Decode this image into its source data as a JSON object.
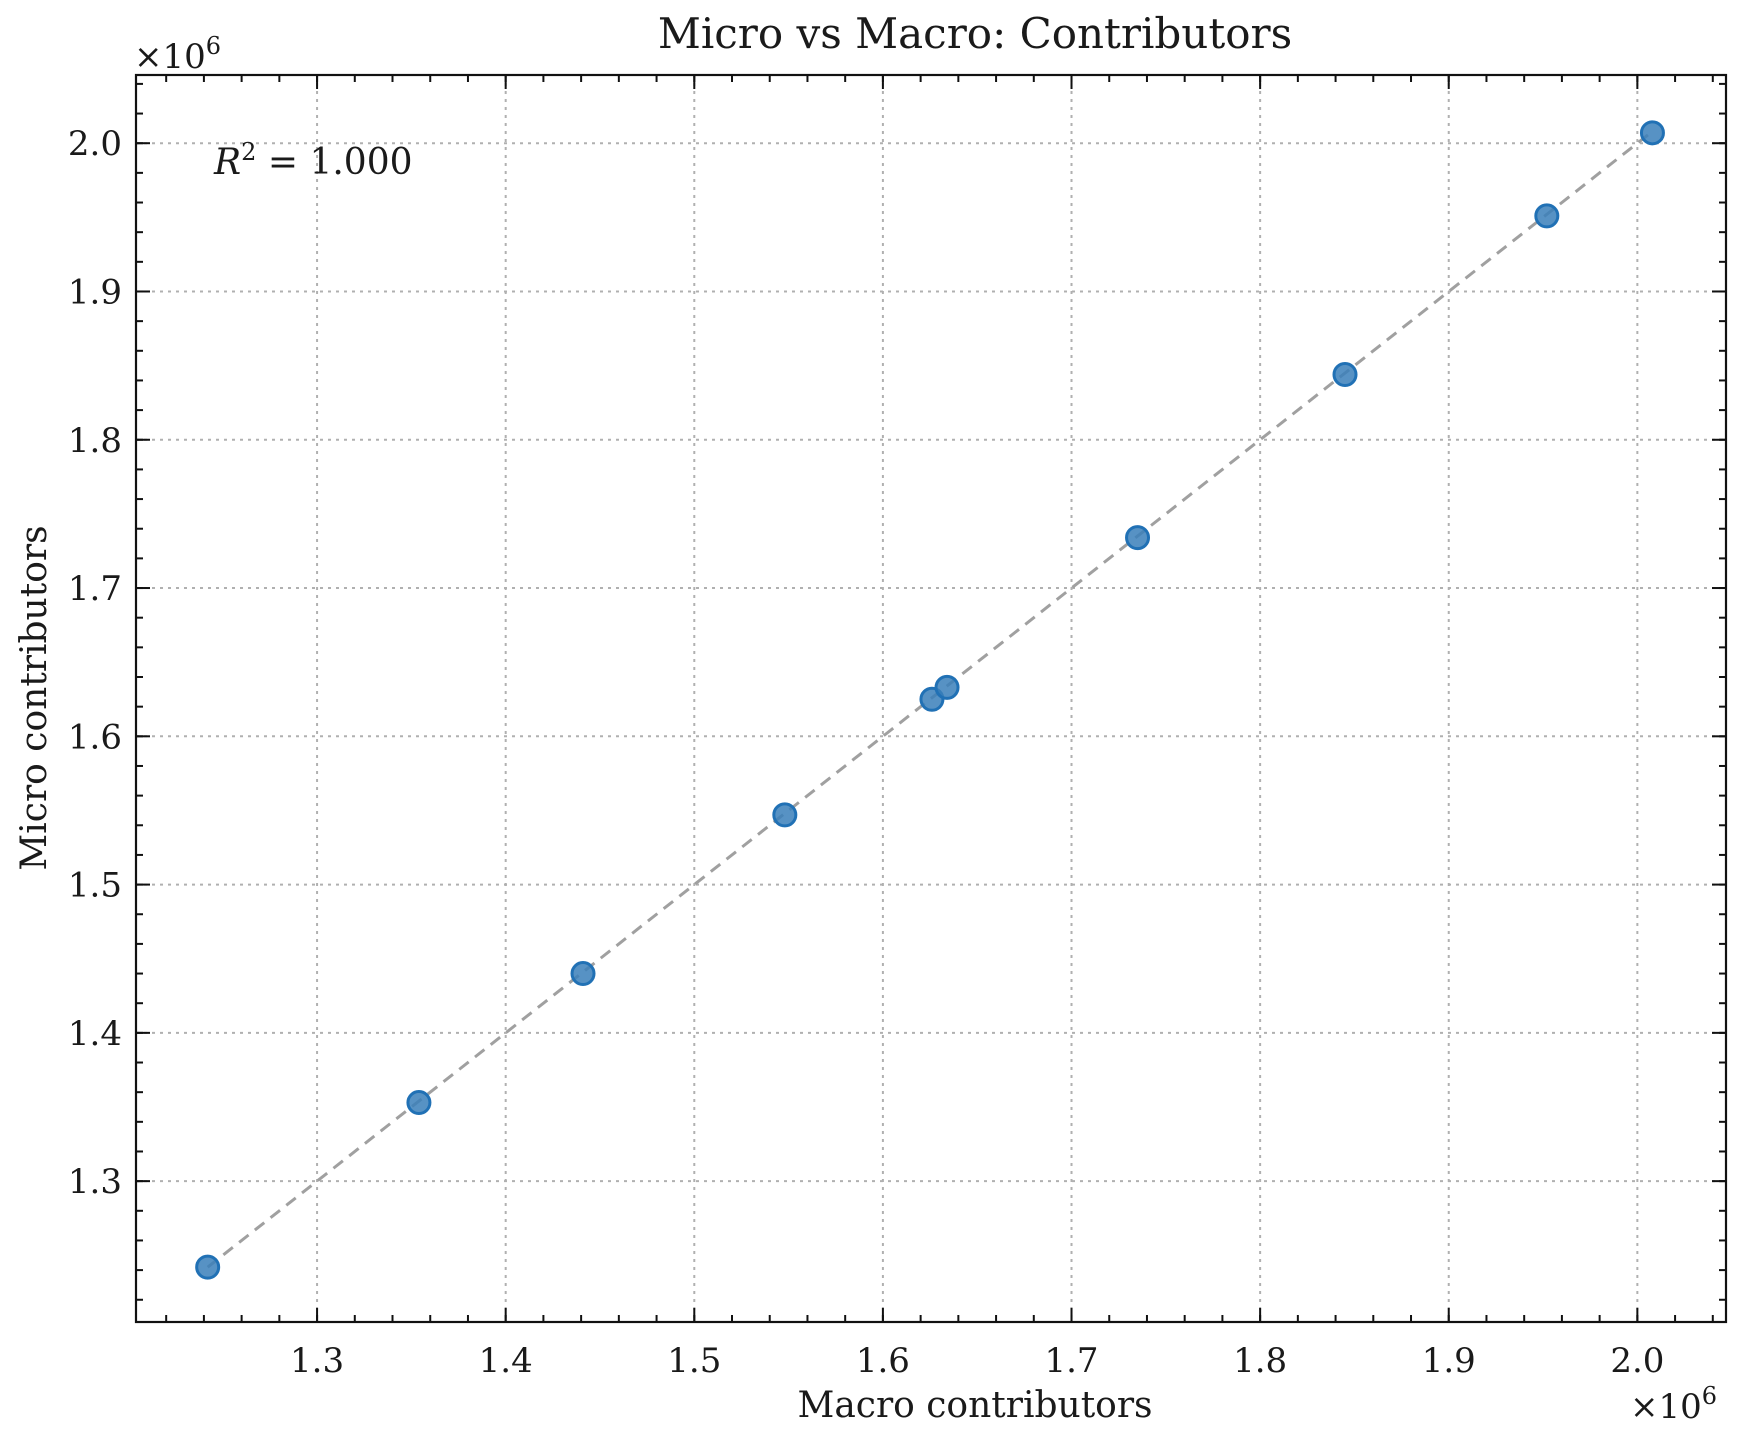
{
  "chart_data": {
    "type": "scatter",
    "title": "Micro vs Macro: Contributors",
    "xlabel": "Macro contributors",
    "ylabel": "Micro contributors",
    "x_multiplier": "×10",
    "x_multiplier_exp": "6",
    "y_multiplier": "×10",
    "y_multiplier_exp": "6",
    "annotation": {
      "r": "R",
      "sup": "2",
      "rest": " = 1.000"
    },
    "xlim": [
      1.204,
      2.047
    ],
    "ylim": [
      1.205,
      2.046
    ],
    "xticks": [
      1.3,
      1.4,
      1.5,
      1.6,
      1.7,
      1.8,
      1.9,
      2.0
    ],
    "xtick_labels": [
      "1.3",
      "1.4",
      "1.5",
      "1.6",
      "1.7",
      "1.8",
      "1.9",
      "2.0"
    ],
    "yticks": [
      1.3,
      1.4,
      1.5,
      1.6,
      1.7,
      1.8,
      1.9,
      2.0
    ],
    "ytick_labels": [
      "1.3",
      "1.4",
      "1.5",
      "1.6",
      "1.7",
      "1.8",
      "1.9",
      "2.0"
    ],
    "minor_step": 0.02,
    "grid": true,
    "points": [
      {
        "x": 1.242,
        "y": 1.242
      },
      {
        "x": 1.354,
        "y": 1.353
      },
      {
        "x": 1.441,
        "y": 1.44
      },
      {
        "x": 1.548,
        "y": 1.547
      },
      {
        "x": 1.626,
        "y": 1.625
      },
      {
        "x": 1.634,
        "y": 1.633
      },
      {
        "x": 1.735,
        "y": 1.734
      },
      {
        "x": 1.845,
        "y": 1.844
      },
      {
        "x": 1.952,
        "y": 1.951
      },
      {
        "x": 2.008,
        "y": 2.007
      }
    ],
    "fit_line": {
      "x": [
        1.242,
        2.008
      ],
      "y": [
        1.242,
        2.008
      ],
      "style": "dashed"
    },
    "colors": {
      "marker_fill": "#3a7fba",
      "marker_edge": "#2171b5",
      "fit_line": "#a0a0a0"
    }
  }
}
